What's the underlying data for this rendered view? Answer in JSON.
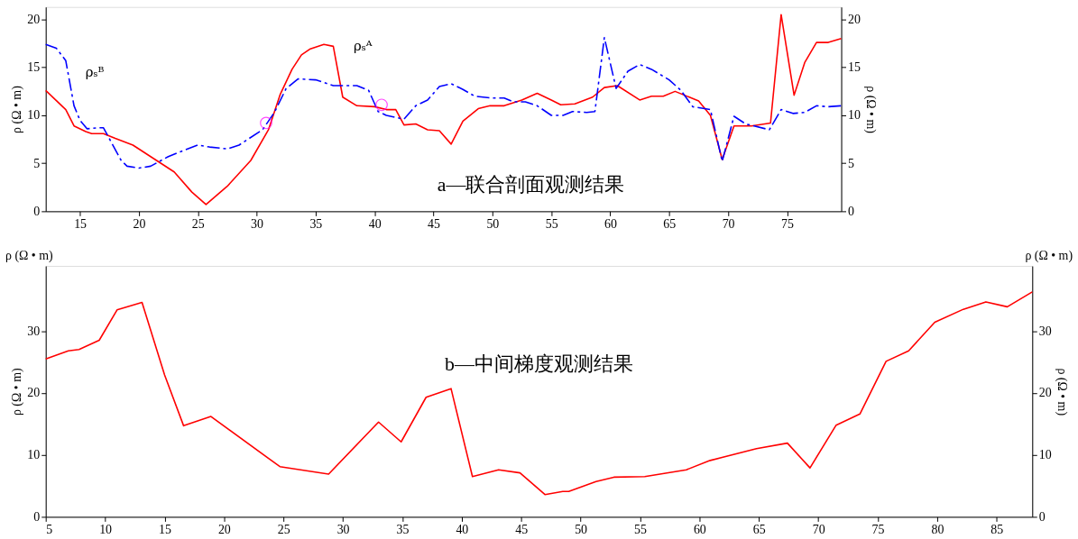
{
  "chart_data": [
    {
      "type": "line",
      "ylabel": "ρ (Ω • m)",
      "y2label": "ρ (Ω • m)",
      "xlim": [
        12.1,
        79.6
      ],
      "xticks": [
        15,
        20,
        25,
        30,
        35,
        40,
        45,
        50,
        55,
        60,
        65,
        70,
        75
      ],
      "ylim": [
        0,
        21.3
      ],
      "yticks": [
        0,
        5,
        10,
        15,
        20
      ],
      "y2lim": [
        0,
        21.3
      ],
      "y2ticks": [
        0,
        5,
        10,
        15,
        20
      ],
      "grid": false,
      "annotations": [
        "a—联合剖面观测结果",
        "ρₛᴮ",
        "ρₛᴬ"
      ],
      "series": [
        {
          "color": "#ff0000",
          "line_style": "solid",
          "x": [
            12.1,
            13.8,
            14.5,
            15.5,
            16,
            17,
            18,
            19.5,
            21,
            23,
            24.5,
            25.7,
            27.5,
            29.5,
            31,
            32,
            33,
            33.8,
            34.5,
            35.7,
            36.5,
            37.3,
            38.5,
            40,
            41,
            41.8,
            42.5,
            43.5,
            44.5,
            45.5,
            46.5,
            47.5,
            48.8,
            49.8,
            51,
            52.5,
            53.8,
            55,
            55.8,
            57,
            58.5,
            59.5,
            60.6,
            62.5,
            63.5,
            64.5,
            65.5,
            67.5,
            68.5,
            69.5,
            70.5,
            72,
            73.6,
            74.5,
            75.6,
            76.5,
            77.5,
            78.5,
            79.6
          ],
          "values": [
            12.6,
            10.6,
            8.9,
            8.3,
            8.1,
            8.1,
            7.6,
            6.9,
            5.7,
            4.1,
            2.0,
            0.7,
            2.6,
            5.3,
            8.5,
            12.2,
            14.8,
            16.3,
            16.9,
            17.4,
            17.2,
            11.9,
            11.0,
            10.9,
            10.6,
            10.6,
            9.0,
            9.1,
            8.5,
            8.4,
            7.0,
            9.4,
            10.7,
            11.0,
            11.0,
            11.6,
            12.3,
            11.6,
            11.1,
            11.2,
            11.9,
            12.9,
            13.1,
            11.6,
            12.0,
            12.0,
            12.5,
            11.5,
            10.0,
            5.4,
            8.9,
            8.9,
            9.2,
            20.5,
            12.1,
            15.5,
            17.6,
            17.6,
            18.0
          ]
        },
        {
          "color": "#0000ff",
          "line_style": "dashed",
          "x": [
            12.1,
            13,
            13.8,
            14.5,
            15,
            15.6,
            16.5,
            17,
            18.5,
            19,
            20,
            21,
            22.5,
            23.5,
            25,
            26,
            27.5,
            28.5,
            30.5,
            31.5,
            32.5,
            33.5,
            35,
            36.5,
            38.5,
            39.5,
            40.3,
            41,
            42.5,
            43.5,
            44.5,
            45.5,
            46.5,
            47.5,
            48.5,
            50,
            51,
            51.8,
            52.8,
            53.8,
            55,
            56,
            56.8,
            58,
            58.7,
            59.5,
            60.5,
            61.5,
            62.5,
            63.5,
            65,
            66,
            67,
            68.5,
            69.5,
            70.5,
            71.5,
            73.5,
            74.5,
            75.5,
            76.5,
            77.5,
            78.5,
            79.6
          ],
          "values": [
            17.4,
            17.0,
            15.7,
            11.0,
            9.5,
            8.6,
            8.7,
            8.7,
            5.3,
            4.7,
            4.5,
            4.7,
            5.7,
            6.2,
            6.9,
            6.7,
            6.5,
            6.9,
            8.5,
            10.3,
            12.8,
            13.8,
            13.7,
            13.1,
            13.1,
            12.6,
            10.4,
            10.0,
            9.6,
            11.0,
            11.6,
            13.0,
            13.3,
            12.7,
            12.0,
            11.8,
            11.8,
            11.4,
            11.4,
            11.0,
            10.0,
            10.0,
            10.4,
            10.3,
            10.4,
            18.1,
            12.8,
            14.6,
            15.3,
            14.8,
            13.7,
            12.6,
            10.9,
            10.6,
            5.2,
            9.9,
            9.1,
            8.5,
            10.6,
            10.2,
            10.3,
            11.0,
            10.9,
            11.0
          ]
        },
        {
          "type": "scatter",
          "color": "#ff00ff",
          "marker": "circle",
          "x": [
            30.8,
            40.6
          ],
          "values": [
            9.2,
            11.1
          ]
        }
      ]
    },
    {
      "type": "line",
      "ylabel": "ρ (Ω • m)",
      "y2label": "ρ (Ω • m)",
      "xlim": [
        5,
        88
      ],
      "xticks": [
        5,
        10,
        15,
        20,
        25,
        30,
        35,
        40,
        45,
        50,
        55,
        60,
        65,
        70,
        75,
        80,
        85
      ],
      "ylim": [
        0,
        40.5
      ],
      "yticks": [
        0,
        10,
        20,
        30
      ],
      "y2lim": [
        0,
        40.5
      ],
      "y2ticks": [
        0,
        10,
        20,
        30
      ],
      "grid": false,
      "annotations": [
        "b—中间梯度观测结果",
        "ρ (Ω • m)",
        "ρ (Ω • m)"
      ],
      "series": [
        {
          "color": "#ff0000",
          "line_style": "solid",
          "x": [
            5,
            6.9,
            7.8,
            9.5,
            11.0,
            13.1,
            15.0,
            16.6,
            17.5,
            18.9,
            24.7,
            28.8,
            33.0,
            34.9,
            37.0,
            39.1,
            40.9,
            43.1,
            44.9,
            47.0,
            48.5,
            49.0,
            51.3,
            52.8,
            55.4,
            58.9,
            60.9,
            64.8,
            67.4,
            69.3,
            71.5,
            73.5,
            75.7,
            77.6,
            79.8,
            82.2,
            84.1,
            85.9,
            88
          ],
          "values": [
            25.5,
            26.8,
            27.0,
            28.5,
            33.4,
            34.6,
            22.9,
            14.7,
            15.3,
            16.2,
            8.1,
            6.9,
            15.3,
            12.1,
            19.3,
            20.7,
            6.5,
            7.6,
            7.1,
            3.6,
            4.1,
            4.1,
            5.7,
            6.4,
            6.5,
            7.6,
            9.1,
            11.0,
            11.9,
            7.9,
            14.8,
            16.6,
            25.1,
            26.8,
            31.4,
            33.5,
            34.7,
            33.9,
            36.3
          ]
        }
      ]
    }
  ]
}
